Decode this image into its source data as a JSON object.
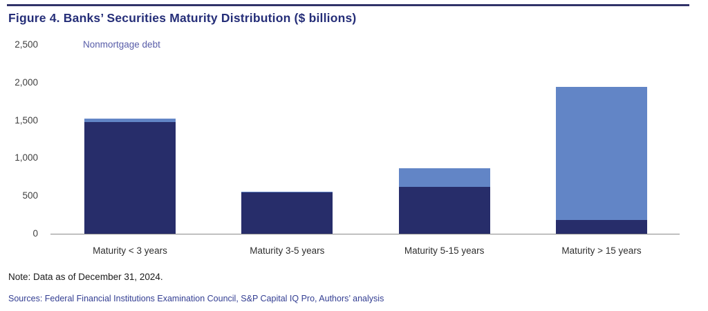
{
  "header": {
    "title": "Figure 4. Banks’ Securities Maturity Distribution ($ billions)"
  },
  "chart_data": {
    "type": "bar",
    "stacked": true,
    "title": "Figure 4. Banks’ Securities Maturity Distribution ($ billions)",
    "legend_label": "Nonmortgage debt",
    "legend_position": "top-left, above first bar",
    "categories": [
      "Maturity < 3 years",
      "Maturity 3-5 years",
      "Maturity 5-15 years",
      "Maturity > 15 years"
    ],
    "series": [
      {
        "name": "dark-navy-segment",
        "color": "#272D6A",
        "values": [
          1475,
          545,
          620,
          185
        ]
      },
      {
        "name": "light-blue-segment",
        "color": "#6285C6",
        "values": [
          45,
          10,
          250,
          1755
        ]
      }
    ],
    "totals": [
      1520,
      555,
      870,
      1940
    ],
    "xlabel": "",
    "ylabel": "",
    "ylim": [
      0,
      2500
    ],
    "ytick_interval": 500,
    "yticks": [
      "0",
      "500",
      "1,000",
      "1,500",
      "2,000",
      "2,500"
    ],
    "grid": false
  },
  "footer": {
    "note": "Note: Data as of December 31, 2024.",
    "sources": "Sources: Federal Financial Institutions Examination Council, S&P Capital IQ Pro, Authors’ analysis"
  },
  "colors": {
    "title_text": "#252E78",
    "top_rule": "#303268",
    "legend_text": "#575CA8",
    "axis_tick_text": "#3F3F3F",
    "axis_line": "#8A8A8A",
    "bar_dark": "#272D6A",
    "bar_light": "#6285C6",
    "note_text": "#1A1A1A",
    "sources_text": "#333E92"
  }
}
